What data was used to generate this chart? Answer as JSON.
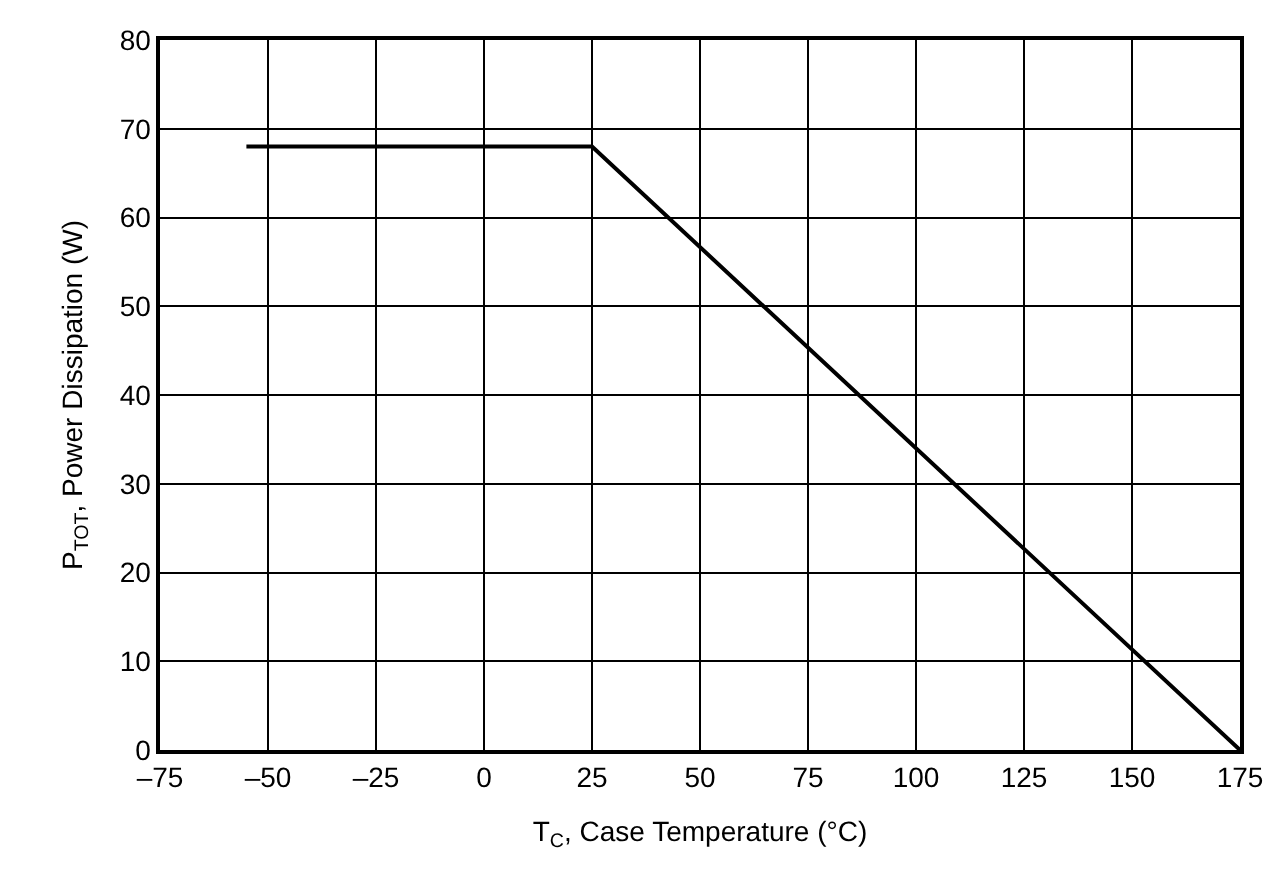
{
  "chart_data": {
    "type": "line",
    "xlabel": "T$_{C}$, Case Temperature (°C)",
    "ylabel": "P$_{TOT}$, Power Dissipation (W)",
    "series": [
      {
        "color": "#000000",
        "x": [
          -55,
          25,
          175
        ],
        "values": [
          68,
          68,
          0
        ]
      }
    ],
    "xlim": [
      -75,
      175
    ],
    "xticks": [
      {
        "value": -75,
        "label": "–75"
      },
      {
        "value": -50,
        "label": "–50"
      },
      {
        "value": -25,
        "label": "–25"
      },
      0,
      25,
      50,
      75,
      100,
      125,
      150,
      175
    ],
    "ylim": [
      0,
      80
    ],
    "yticks": [
      0,
      10,
      20,
      30,
      40,
      50,
      60,
      70,
      80
    ],
    "grid": true,
    "marker": "none",
    "line_style": "solid"
  }
}
